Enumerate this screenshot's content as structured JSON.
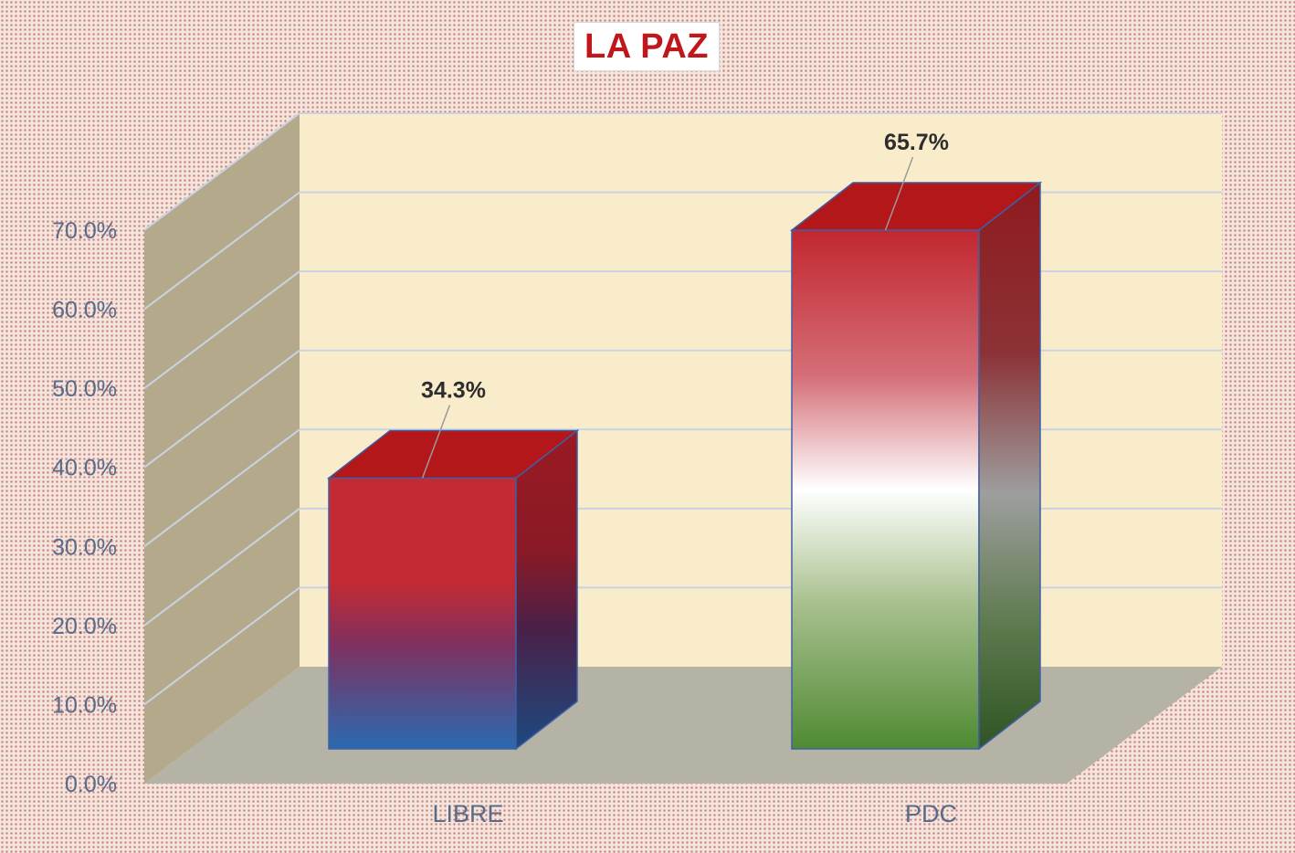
{
  "chart_data": {
    "type": "bar",
    "style": "3d-column",
    "title": "LA PAZ",
    "categories": [
      "LIBRE",
      "PDC"
    ],
    "values": [
      34.3,
      65.7
    ],
    "data_labels": [
      "34.3%",
      "65.7%"
    ],
    "ylim": [
      0,
      70
    ],
    "y_ticks": [
      0,
      10,
      20,
      30,
      40,
      50,
      60,
      70
    ],
    "y_tick_labels": [
      "0.0%",
      "10.0%",
      "20.0%",
      "30.0%",
      "40.0%",
      "50.0%",
      "60.0%",
      "70.0%"
    ],
    "xlabel": "",
    "ylabel": "",
    "grid": true,
    "legend": "none",
    "colors": {
      "wall_back": "#f9ecca",
      "wall_side": "#b5a98b",
      "floor": "#b5b3a6",
      "gridline": "#c9d3e3",
      "title_text": "#c0171c",
      "bar_top": "#b3171a",
      "bar_libre_gradient": [
        "#c42a33",
        "#c42a33",
        "#7e3160",
        "#2a6ab0"
      ],
      "bar_pdc_gradient": [
        "#c2272f",
        "#d46e77",
        "#ffffff",
        "#a8c08e",
        "#4f8a33"
      ]
    }
  }
}
